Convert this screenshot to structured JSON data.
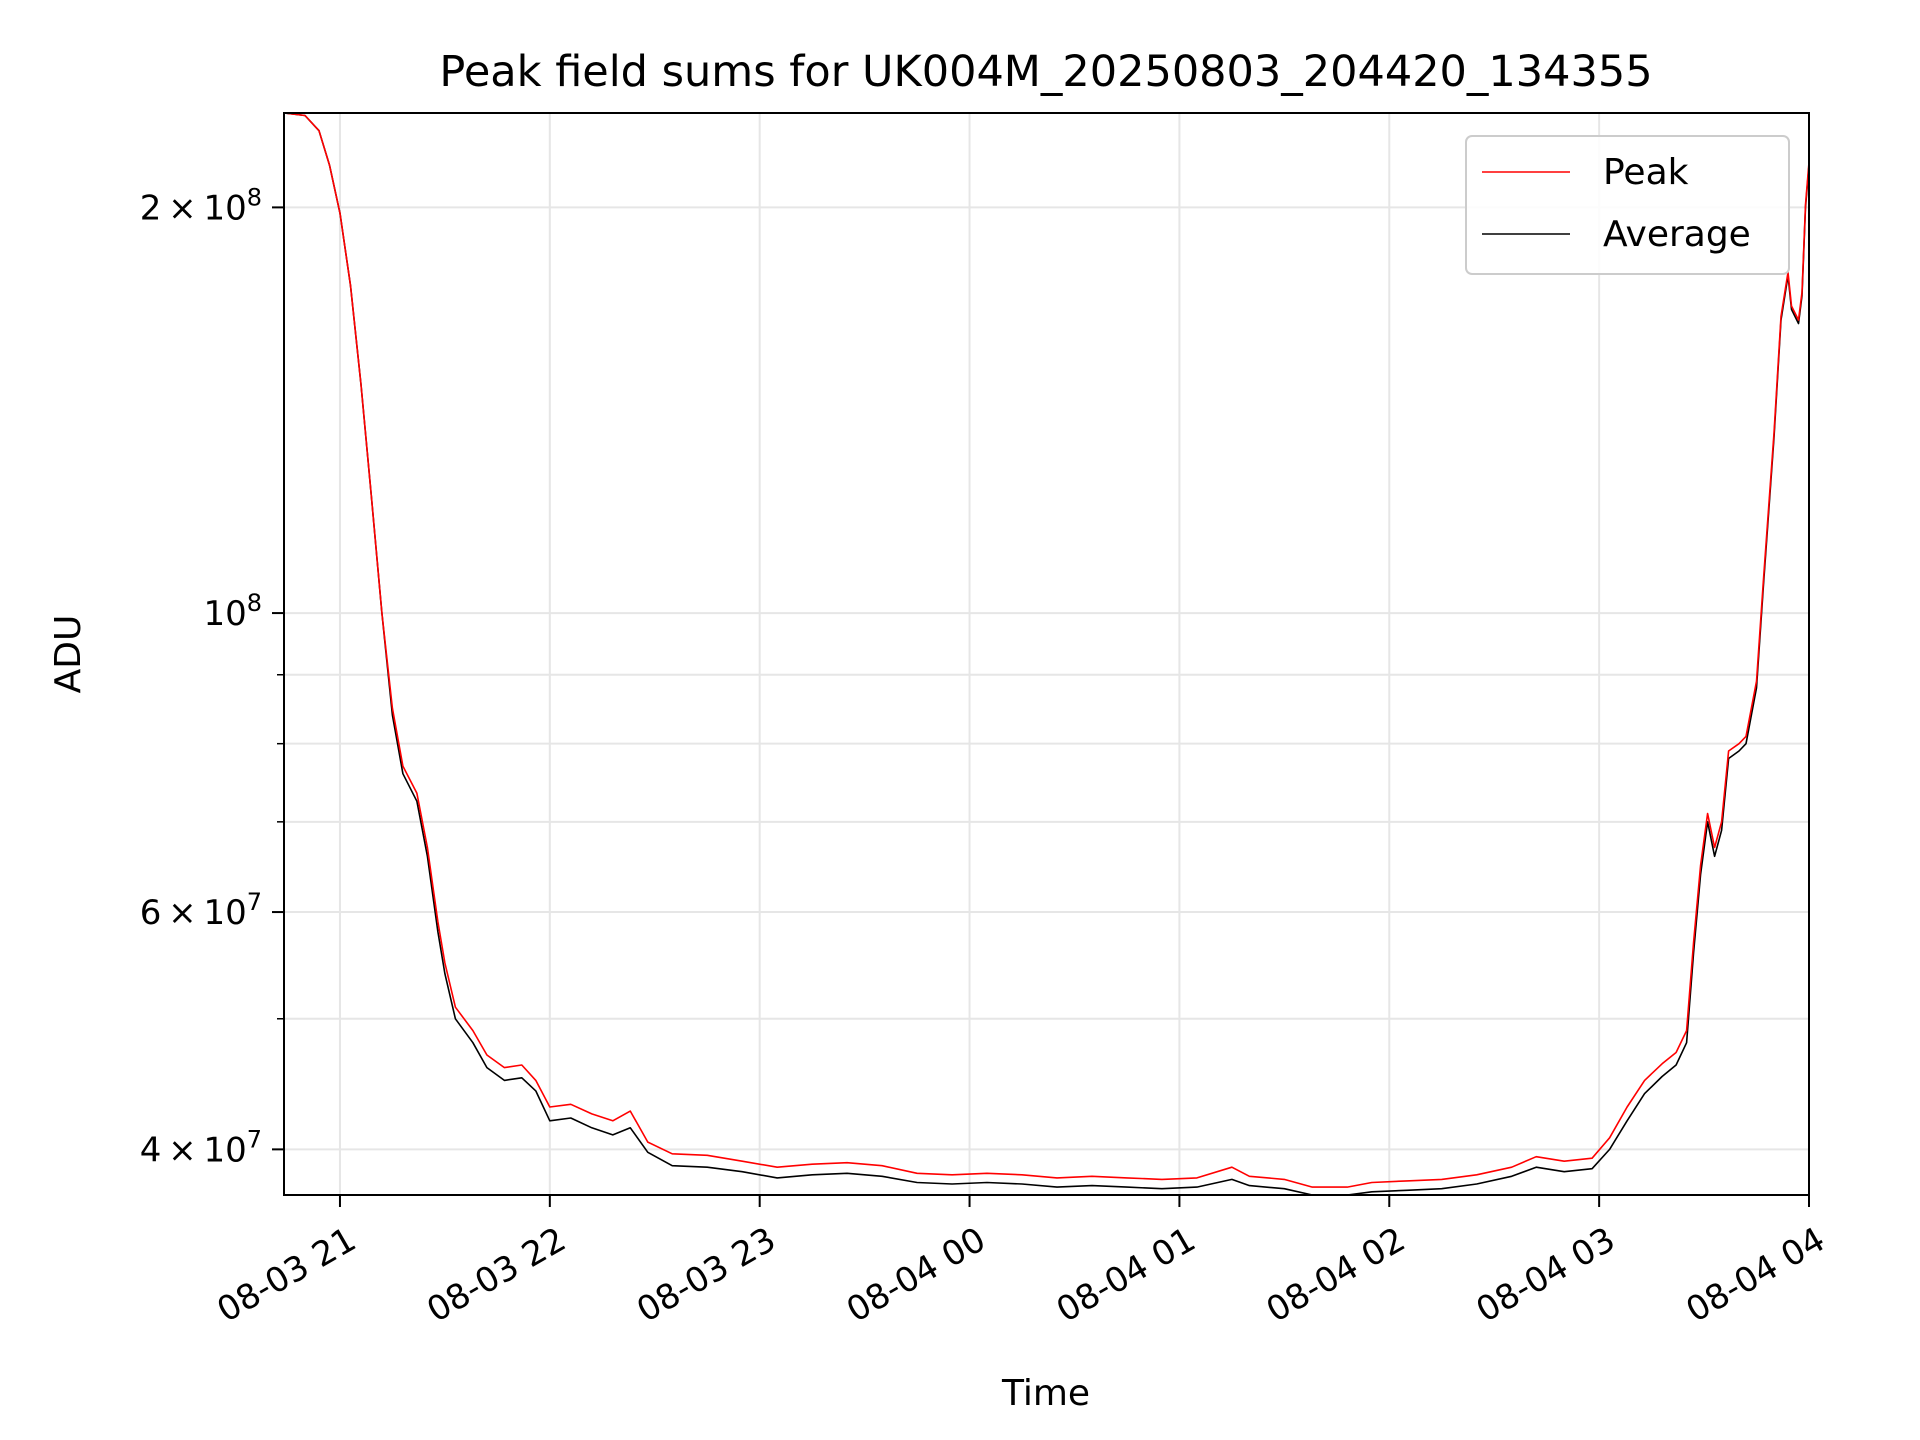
{
  "chart_data": {
    "type": "line",
    "title": "Peak field sums for UK004M_20250803_204420_134355",
    "xlabel": "Time",
    "ylabel": "ADU",
    "y_scale": "log",
    "ylim": [
      37000000,
      235000000
    ],
    "xlim": [
      "2025-08-03 20:44",
      "2025-08-04 04:00"
    ],
    "grid": true,
    "legend": {
      "placement": "top-right",
      "entries": [
        "Peak",
        "Average"
      ]
    },
    "x_ticks": [
      {
        "value": "2025-08-03 21:00",
        "label": "08-03 21"
      },
      {
        "value": "2025-08-03 22:00",
        "label": "08-03 22"
      },
      {
        "value": "2025-08-03 23:00",
        "label": "08-03 23"
      },
      {
        "value": "2025-08-04 00:00",
        "label": "08-04 00"
      },
      {
        "value": "2025-08-04 01:00",
        "label": "08-04 01"
      },
      {
        "value": "2025-08-04 02:00",
        "label": "08-04 02"
      },
      {
        "value": "2025-08-04 03:00",
        "label": "08-04 03"
      },
      {
        "value": "2025-08-04 04:00",
        "label": "08-04 04"
      }
    ],
    "y_ticks": [
      {
        "value": 40000000,
        "base": "4",
        "exp": "7"
      },
      {
        "value": 60000000,
        "base": "6",
        "exp": "7"
      },
      {
        "value": 100000000,
        "base": "",
        "exp": "8"
      },
      {
        "value": 200000000,
        "base": "2",
        "exp": "8"
      }
    ],
    "y_minor_ticks": [
      50000000,
      70000000,
      80000000,
      90000000,
      300000000
    ],
    "series": [
      {
        "name": "Average",
        "color": "#000000",
        "points": [
          [
            "2025-08-03 20:44",
            235000000
          ],
          [
            "2025-08-03 20:50",
            234000000
          ],
          [
            "2025-08-03 20:54",
            228000000
          ],
          [
            "2025-08-03 20:57",
            215000000
          ],
          [
            "2025-08-03 21:00",
            198000000
          ],
          [
            "2025-08-03 21:03",
            175000000
          ],
          [
            "2025-08-03 21:06",
            148000000
          ],
          [
            "2025-08-03 21:09",
            122000000
          ],
          [
            "2025-08-03 21:12",
            100000000
          ],
          [
            "2025-08-03 21:15",
            84000000
          ],
          [
            "2025-08-03 21:18",
            76000000
          ],
          [
            "2025-08-03 21:22",
            72500000
          ],
          [
            "2025-08-03 21:25",
            66000000
          ],
          [
            "2025-08-03 21:28",
            58000000
          ],
          [
            "2025-08-03 21:30",
            54000000
          ],
          [
            "2025-08-03 21:33",
            50000000
          ],
          [
            "2025-08-03 21:38",
            48000000
          ],
          [
            "2025-08-03 21:42",
            46000000
          ],
          [
            "2025-08-03 21:47",
            45000000
          ],
          [
            "2025-08-03 21:52",
            45200000
          ],
          [
            "2025-08-03 21:56",
            44200000
          ],
          [
            "2025-08-03 22:00",
            42000000
          ],
          [
            "2025-08-03 22:06",
            42200000
          ],
          [
            "2025-08-03 22:12",
            41500000
          ],
          [
            "2025-08-03 22:18",
            41000000
          ],
          [
            "2025-08-03 22:23",
            41500000
          ],
          [
            "2025-08-03 22:28",
            39800000
          ],
          [
            "2025-08-03 22:35",
            38900000
          ],
          [
            "2025-08-03 22:45",
            38800000
          ],
          [
            "2025-08-03 22:55",
            38500000
          ],
          [
            "2025-08-03 23:05",
            38100000
          ],
          [
            "2025-08-03 23:15",
            38300000
          ],
          [
            "2025-08-03 23:25",
            38400000
          ],
          [
            "2025-08-03 23:35",
            38200000
          ],
          [
            "2025-08-03 23:45",
            37800000
          ],
          [
            "2025-08-03 23:55",
            37700000
          ],
          [
            "2025-08-04 00:05",
            37800000
          ],
          [
            "2025-08-04 00:15",
            37700000
          ],
          [
            "2025-08-04 00:25",
            37500000
          ],
          [
            "2025-08-04 00:35",
            37600000
          ],
          [
            "2025-08-04 00:45",
            37500000
          ],
          [
            "2025-08-04 00:55",
            37400000
          ],
          [
            "2025-08-04 01:05",
            37500000
          ],
          [
            "2025-08-04 01:15",
            38000000
          ],
          [
            "2025-08-04 01:20",
            37600000
          ],
          [
            "2025-08-04 01:30",
            37400000
          ],
          [
            "2025-08-04 01:38",
            37000000
          ],
          [
            "2025-08-04 01:48",
            37000000
          ],
          [
            "2025-08-04 01:55",
            37200000
          ],
          [
            "2025-08-04 02:05",
            37300000
          ],
          [
            "2025-08-04 02:15",
            37400000
          ],
          [
            "2025-08-04 02:25",
            37700000
          ],
          [
            "2025-08-04 02:35",
            38200000
          ],
          [
            "2025-08-04 02:42",
            38800000
          ],
          [
            "2025-08-04 02:50",
            38500000
          ],
          [
            "2025-08-04 02:58",
            38700000
          ],
          [
            "2025-08-04 03:03",
            40000000
          ],
          [
            "2025-08-04 03:08",
            42000000
          ],
          [
            "2025-08-04 03:13",
            44000000
          ],
          [
            "2025-08-04 03:18",
            45300000
          ],
          [
            "2025-08-04 03:22",
            46200000
          ],
          [
            "2025-08-04 03:25",
            48000000
          ],
          [
            "2025-08-04 03:27",
            56000000
          ],
          [
            "2025-08-04 03:29",
            64000000
          ],
          [
            "2025-08-04 03:31",
            70000000
          ],
          [
            "2025-08-04 03:33",
            66000000
          ],
          [
            "2025-08-04 03:35",
            69000000
          ],
          [
            "2025-08-04 03:37",
            78000000
          ],
          [
            "2025-08-04 03:40",
            79000000
          ],
          [
            "2025-08-04 03:42",
            80000000
          ],
          [
            "2025-08-04 03:45",
            88000000
          ],
          [
            "2025-08-04 03:47",
            105000000
          ],
          [
            "2025-08-04 03:50",
            135000000
          ],
          [
            "2025-08-04 03:52",
            165000000
          ],
          [
            "2025-08-04 03:54",
            178000000
          ],
          [
            "2025-08-04 03:55",
            168000000
          ],
          [
            "2025-08-04 03:57",
            164000000
          ],
          [
            "2025-08-04 03:58",
            172000000
          ],
          [
            "2025-08-04 03:59",
            200000000
          ],
          [
            "2025-08-04 04:00",
            215000000
          ]
        ]
      },
      {
        "name": "Peak",
        "color": "#ff0000",
        "points": [
          [
            "2025-08-03 20:44",
            235000000
          ],
          [
            "2025-08-03 20:50",
            234000000
          ],
          [
            "2025-08-03 20:54",
            228000000
          ],
          [
            "2025-08-03 20:57",
            215000000
          ],
          [
            "2025-08-03 21:00",
            198000000
          ],
          [
            "2025-08-03 21:03",
            175000000
          ],
          [
            "2025-08-03 21:06",
            148000000
          ],
          [
            "2025-08-03 21:09",
            122000000
          ],
          [
            "2025-08-03 21:12",
            100000000
          ],
          [
            "2025-08-03 21:15",
            85000000
          ],
          [
            "2025-08-03 21:18",
            77000000
          ],
          [
            "2025-08-03 21:22",
            73500000
          ],
          [
            "2025-08-03 21:25",
            67000000
          ],
          [
            "2025-08-03 21:28",
            59000000
          ],
          [
            "2025-08-03 21:30",
            55000000
          ],
          [
            "2025-08-03 21:33",
            51000000
          ],
          [
            "2025-08-03 21:38",
            49000000
          ],
          [
            "2025-08-03 21:42",
            47000000
          ],
          [
            "2025-08-03 21:47",
            46000000
          ],
          [
            "2025-08-03 21:52",
            46200000
          ],
          [
            "2025-08-03 21:56",
            45000000
          ],
          [
            "2025-08-03 22:00",
            43000000
          ],
          [
            "2025-08-03 22:06",
            43200000
          ],
          [
            "2025-08-03 22:12",
            42500000
          ],
          [
            "2025-08-03 22:18",
            42000000
          ],
          [
            "2025-08-03 22:23",
            42700000
          ],
          [
            "2025-08-03 22:28",
            40500000
          ],
          [
            "2025-08-03 22:35",
            39700000
          ],
          [
            "2025-08-03 22:45",
            39600000
          ],
          [
            "2025-08-03 22:55",
            39200000
          ],
          [
            "2025-08-03 23:05",
            38800000
          ],
          [
            "2025-08-03 23:15",
            39000000
          ],
          [
            "2025-08-03 23:25",
            39100000
          ],
          [
            "2025-08-03 23:35",
            38900000
          ],
          [
            "2025-08-03 23:45",
            38400000
          ],
          [
            "2025-08-03 23:55",
            38300000
          ],
          [
            "2025-08-04 00:05",
            38400000
          ],
          [
            "2025-08-04 00:15",
            38300000
          ],
          [
            "2025-08-04 00:25",
            38100000
          ],
          [
            "2025-08-04 00:35",
            38200000
          ],
          [
            "2025-08-04 00:45",
            38100000
          ],
          [
            "2025-08-04 00:55",
            38000000
          ],
          [
            "2025-08-04 01:05",
            38100000
          ],
          [
            "2025-08-04 01:15",
            38800000
          ],
          [
            "2025-08-04 01:20",
            38200000
          ],
          [
            "2025-08-04 01:30",
            38000000
          ],
          [
            "2025-08-04 01:38",
            37500000
          ],
          [
            "2025-08-04 01:48",
            37500000
          ],
          [
            "2025-08-04 01:55",
            37800000
          ],
          [
            "2025-08-04 02:05",
            37900000
          ],
          [
            "2025-08-04 02:15",
            38000000
          ],
          [
            "2025-08-04 02:25",
            38300000
          ],
          [
            "2025-08-04 02:35",
            38800000
          ],
          [
            "2025-08-04 02:42",
            39500000
          ],
          [
            "2025-08-04 02:50",
            39200000
          ],
          [
            "2025-08-04 02:58",
            39400000
          ],
          [
            "2025-08-04 03:03",
            40800000
          ],
          [
            "2025-08-04 03:08",
            43000000
          ],
          [
            "2025-08-04 03:13",
            45000000
          ],
          [
            "2025-08-04 03:18",
            46300000
          ],
          [
            "2025-08-04 03:22",
            47200000
          ],
          [
            "2025-08-04 03:25",
            49000000
          ],
          [
            "2025-08-04 03:27",
            57000000
          ],
          [
            "2025-08-04 03:29",
            65000000
          ],
          [
            "2025-08-04 03:31",
            71000000
          ],
          [
            "2025-08-04 03:33",
            67000000
          ],
          [
            "2025-08-04 03:35",
            70000000
          ],
          [
            "2025-08-04 03:37",
            79000000
          ],
          [
            "2025-08-04 03:40",
            80000000
          ],
          [
            "2025-08-04 03:42",
            81000000
          ],
          [
            "2025-08-04 03:45",
            89000000
          ],
          [
            "2025-08-04 03:47",
            106000000
          ],
          [
            "2025-08-04 03:50",
            136000000
          ],
          [
            "2025-08-04 03:52",
            166000000
          ],
          [
            "2025-08-04 03:54",
            179000000
          ],
          [
            "2025-08-04 03:55",
            169000000
          ],
          [
            "2025-08-04 03:57",
            165000000
          ],
          [
            "2025-08-04 03:58",
            173000000
          ],
          [
            "2025-08-04 03:59",
            201000000
          ],
          [
            "2025-08-04 04:00",
            216000000
          ]
        ]
      }
    ]
  }
}
